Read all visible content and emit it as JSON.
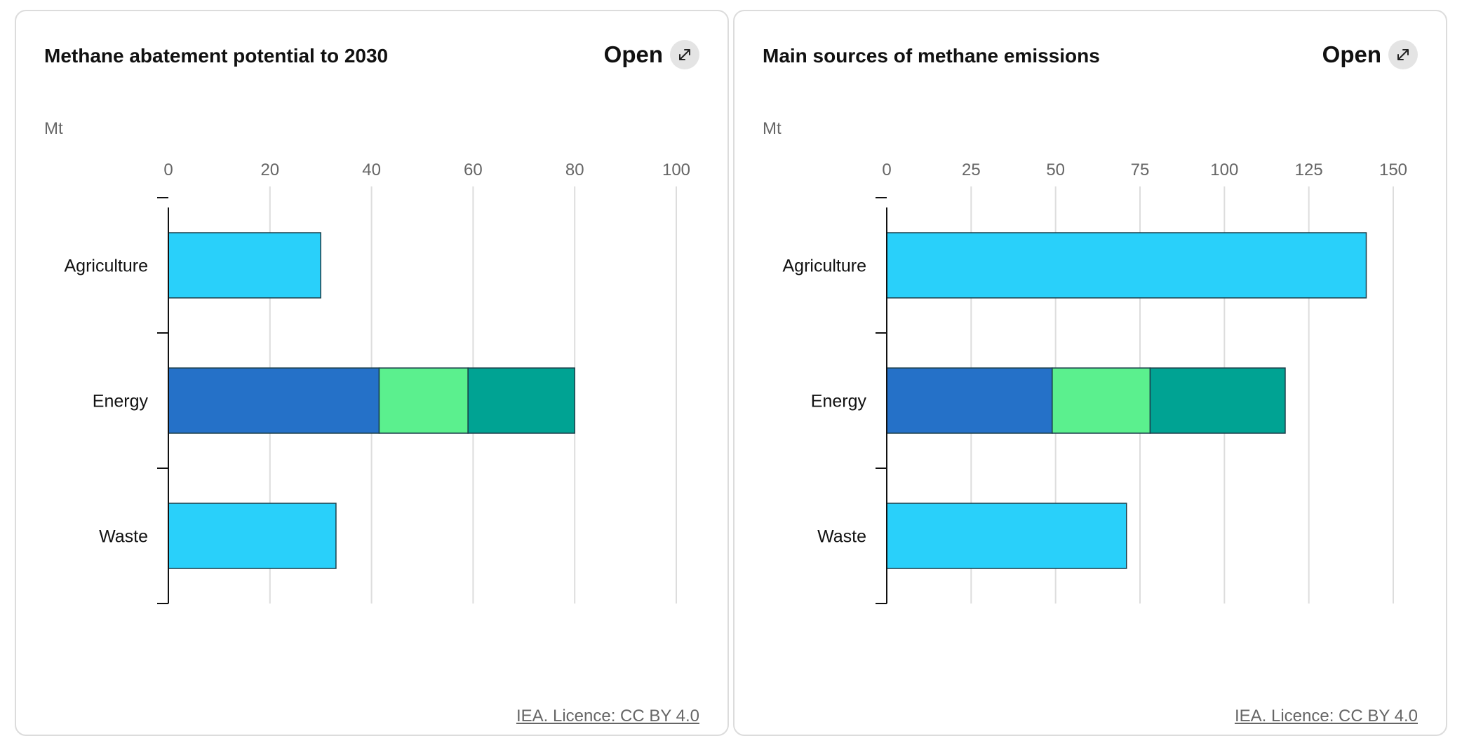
{
  "colors": {
    "bar_single": "#29d0fa",
    "energy_segment_1": "#2571c8",
    "energy_segment_2": "#5bf08e",
    "energy_segment_3": "#00a393",
    "grid": "#dddddd",
    "axis": "#111111"
  },
  "icons": {
    "open": "expand-arrow-icon"
  },
  "cards": [
    {
      "title": "Methane abatement potential to 2030",
      "open_label": "Open",
      "unit": "Mt",
      "licence": "IEA. Licence: CC BY 4.0"
    },
    {
      "title": "Main sources of methane emissions",
      "open_label": "Open",
      "unit": "Mt",
      "licence": "IEA. Licence: CC BY 4.0"
    }
  ],
  "chart_data": [
    {
      "type": "bar",
      "orientation": "horizontal",
      "stacked": true,
      "categories": [
        "Agriculture",
        "Energy",
        "Waste"
      ],
      "series": [
        {
          "values": [
            30,
            41.5,
            33
          ]
        },
        {
          "values": [
            0,
            17.5,
            0
          ]
        },
        {
          "values": [
            0,
            21,
            0
          ]
        }
      ],
      "xticks": [
        "0",
        "20",
        "40",
        "60",
        "80",
        "100"
      ],
      "xlim": [
        0,
        100
      ],
      "grid": true
    },
    {
      "type": "bar",
      "orientation": "horizontal",
      "stacked": true,
      "categories": [
        "Agriculture",
        "Energy",
        "Waste"
      ],
      "series": [
        {
          "values": [
            142,
            49,
            71
          ]
        },
        {
          "values": [
            0,
            29,
            0
          ]
        },
        {
          "values": [
            0,
            40,
            0
          ]
        }
      ],
      "xticks": [
        "0",
        "25",
        "50",
        "75",
        "100",
        "125",
        "150"
      ],
      "xlim": [
        0,
        150
      ],
      "grid": true
    }
  ]
}
